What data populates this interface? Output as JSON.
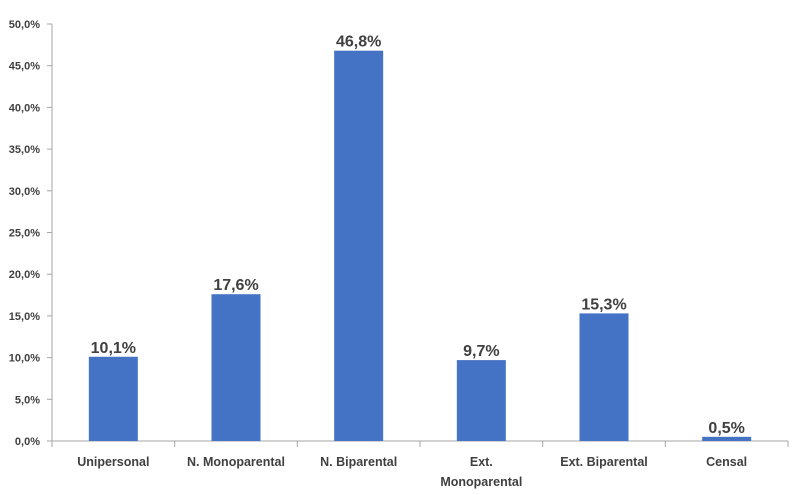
{
  "chart_data": {
    "type": "bar",
    "categories": [
      "Unipersonal",
      "N. Monoparental",
      "N. Biparental",
      [
        "Ext.",
        "Monoparental"
      ],
      "Ext. Biparental",
      "Censal"
    ],
    "values": [
      10.1,
      17.6,
      46.8,
      9.7,
      15.3,
      0.5
    ],
    "data_labels": [
      "10,1%",
      "17,6%",
      "46,8%",
      "9,7%",
      "15,3%",
      "0,5%"
    ],
    "yticks": [
      0,
      5,
      10,
      15,
      20,
      25,
      30,
      35,
      40,
      45,
      50
    ],
    "ytick_labels": [
      "0,0%",
      "5,0%",
      "10,0%",
      "15,0%",
      "20,0%",
      "25,0%",
      "30,0%",
      "35,0%",
      "40,0%",
      "45,0%",
      "50,0%"
    ],
    "ylim": [
      0,
      50
    ],
    "title": "",
    "xlabel": "",
    "ylabel": "",
    "grid": false,
    "legend": "none",
    "colors": {
      "bar": "#4472C4",
      "axis": "#A6A6A6",
      "text": "#404040"
    }
  }
}
